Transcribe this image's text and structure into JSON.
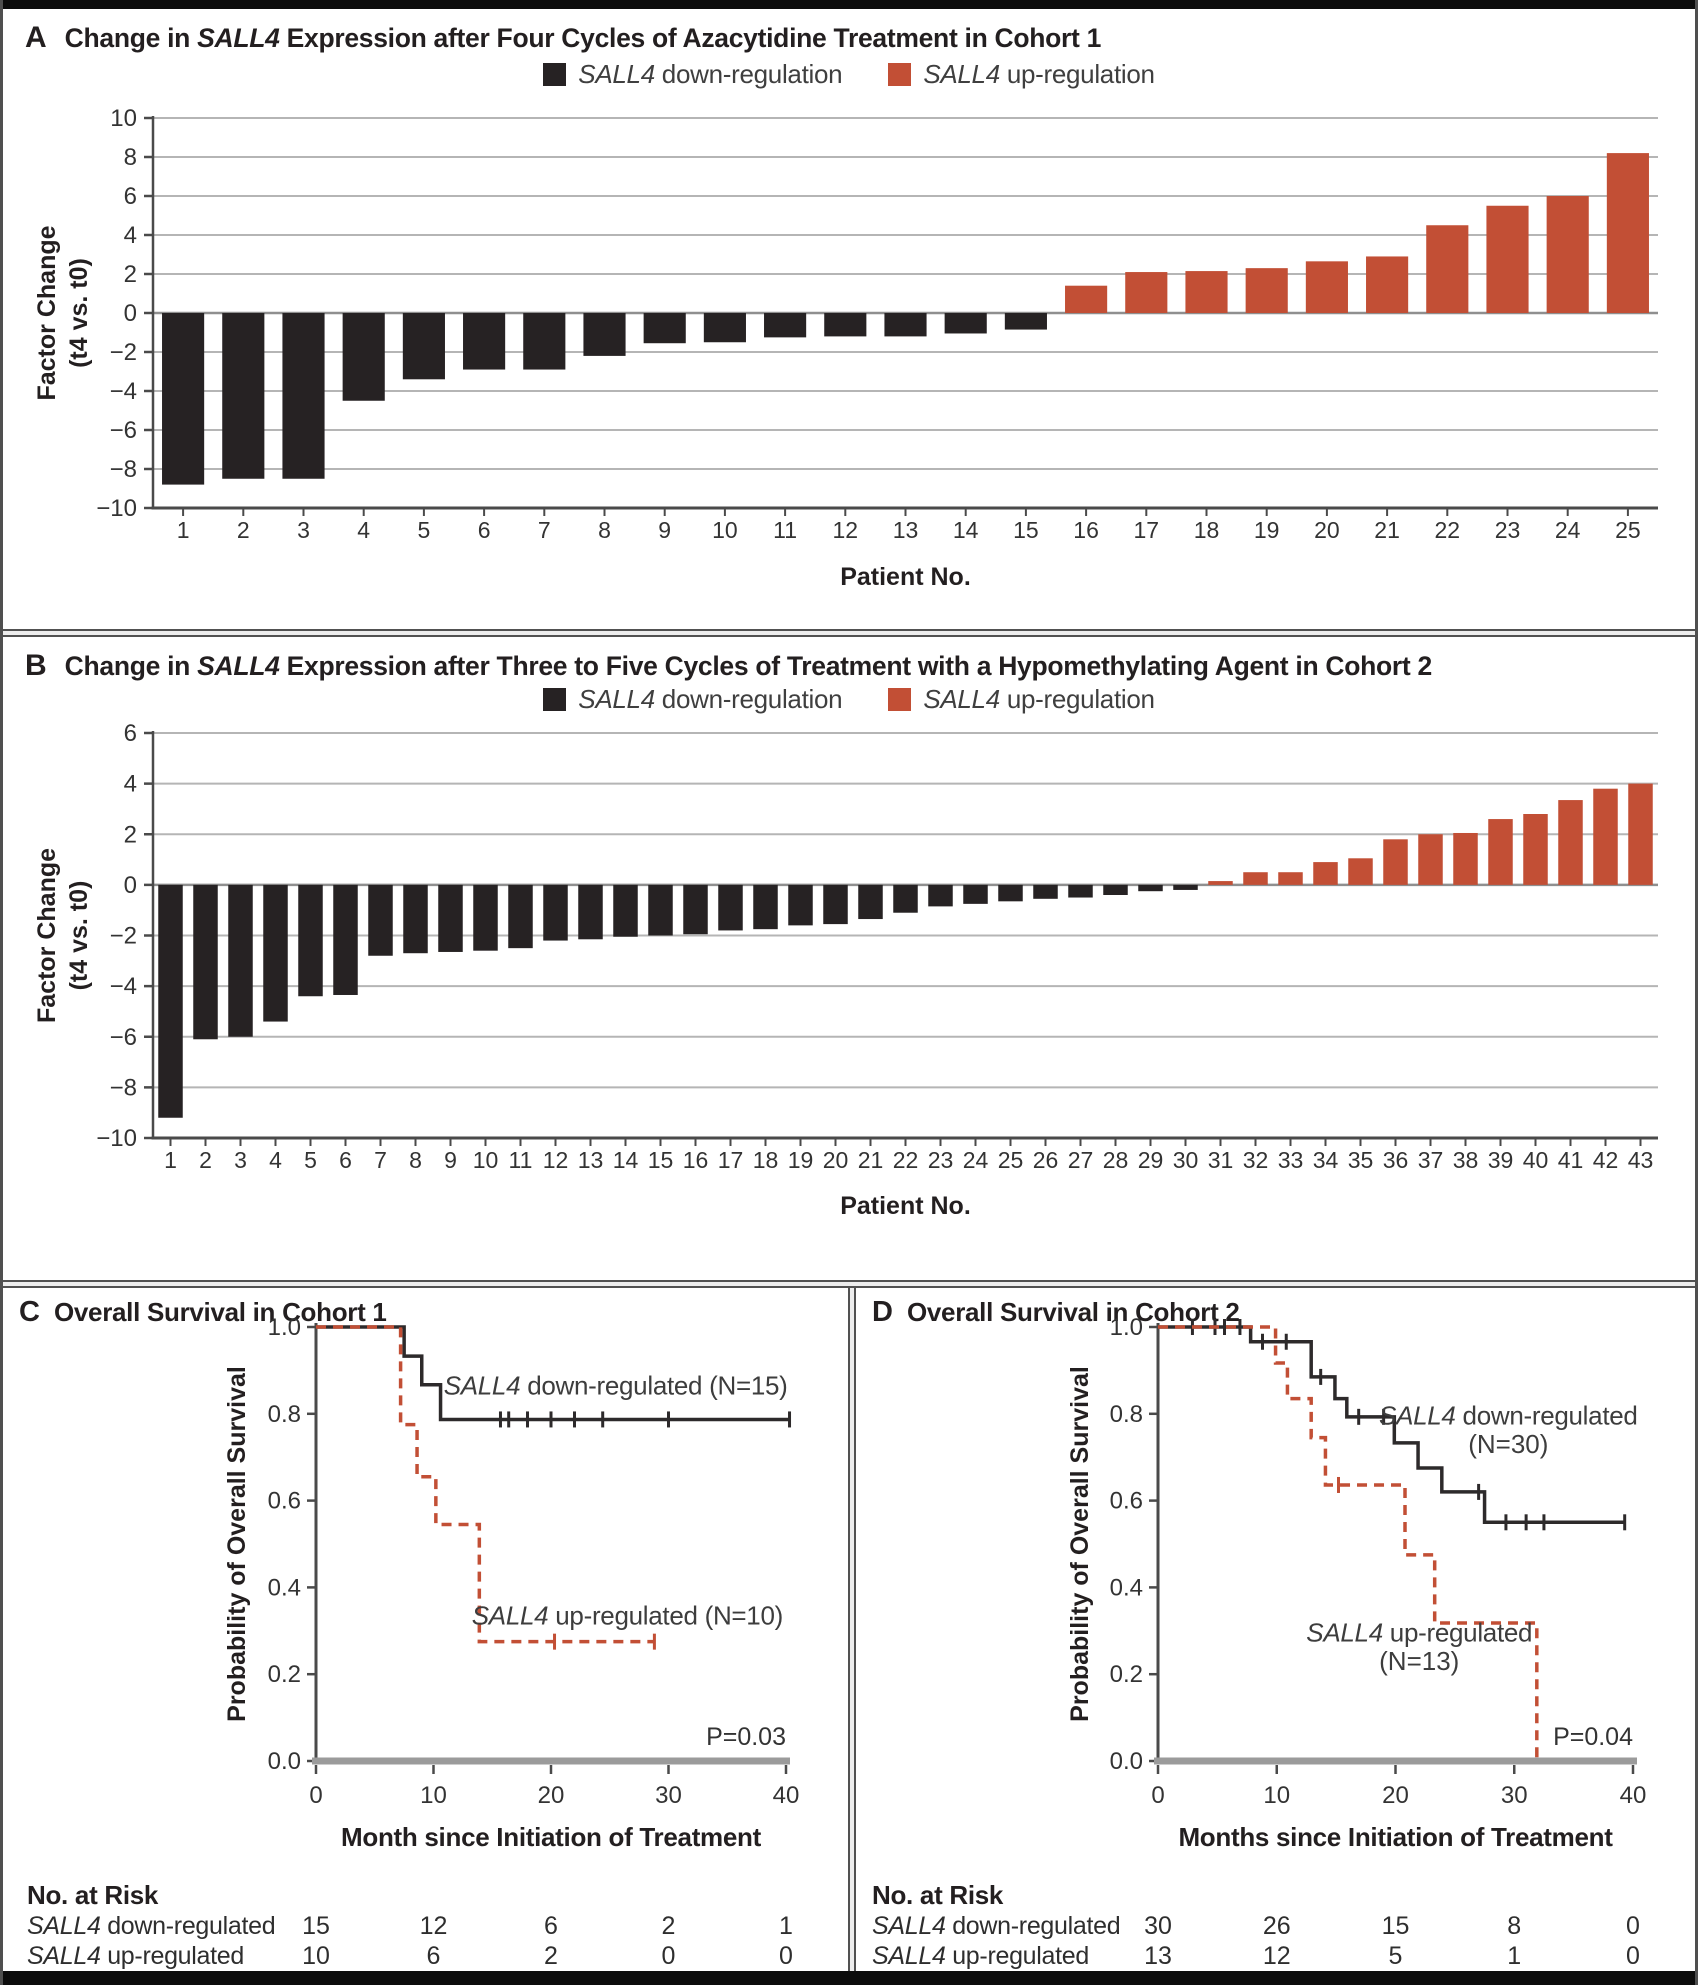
{
  "figure": {
    "colors": {
      "down": "#262223",
      "up": "#c24f35"
    },
    "legend": {
      "gene": "SALL4",
      "down_rest": " down-regulation",
      "up_rest": " up-regulation"
    },
    "panelA": {
      "letter": "A",
      "title_pre": "Change in ",
      "title_gene": "SALL4",
      "title_post": " Expression after Four Cycles of Azacytidine Treatment in Cohort 1"
    },
    "panelB": {
      "letter": "B",
      "title_pre": "Change in ",
      "title_gene": "SALL4",
      "title_post": " Expression after Three to Five Cycles of Treatment with a Hypomethylating Agent in Cohort 2"
    },
    "panelC": {
      "letter": "C",
      "title": "Overall Survival in Cohort 1"
    },
    "panelD": {
      "letter": "D",
      "title": "Overall Survival in Cohort 2"
    }
  },
  "chart_data": [
    {
      "id": "A",
      "type": "bar",
      "title": "Change in SALL4 Expression after Four Cycles of Azacytidine Treatment in Cohort 1",
      "xlabel": "Patient No.",
      "ylabel_line1": "Factor Change",
      "ylabel_line2": "(t4 vs. t0)",
      "ylim": [
        -10,
        10
      ],
      "yticks": [
        10,
        8,
        6,
        4,
        2,
        0,
        -2,
        -4,
        -6,
        -8,
        -10
      ],
      "legend": [
        "SALL4 down-regulation",
        "SALL4 up-regulation"
      ],
      "categories": [
        1,
        2,
        3,
        4,
        5,
        6,
        7,
        8,
        9,
        10,
        11,
        12,
        13,
        14,
        15,
        16,
        17,
        18,
        19,
        20,
        21,
        22,
        23,
        24,
        25
      ],
      "values": [
        -8.8,
        -8.5,
        -8.5,
        -4.5,
        -3.4,
        -2.9,
        -2.9,
        -2.2,
        -1.55,
        -1.5,
        -1.25,
        -1.2,
        -1.2,
        -1.05,
        -0.85,
        1.4,
        2.1,
        2.15,
        2.3,
        2.65,
        2.9,
        4.5,
        5.5,
        6.0,
        8.2
      ],
      "color_rule": "negative=down, positive=up"
    },
    {
      "id": "B",
      "type": "bar",
      "title": "Change in SALL4 Expression after Three to Five Cycles of Treatment with a Hypomethylating Agent in Cohort 2",
      "xlabel": "Patient No.",
      "ylabel_line1": "Factor Change",
      "ylabel_line2": "(t4 vs. t0)",
      "ylim": [
        -10,
        6
      ],
      "yticks": [
        6,
        4,
        2,
        0,
        -2,
        -4,
        -6,
        -8,
        -10
      ],
      "legend": [
        "SALL4 down-regulation",
        "SALL4 up-regulation"
      ],
      "categories": [
        1,
        2,
        3,
        4,
        5,
        6,
        7,
        8,
        9,
        10,
        11,
        12,
        13,
        14,
        15,
        16,
        17,
        18,
        19,
        20,
        21,
        22,
        23,
        24,
        25,
        26,
        27,
        28,
        29,
        30,
        31,
        32,
        33,
        34,
        35,
        36,
        37,
        38,
        39,
        40,
        41,
        42,
        43
      ],
      "values": [
        -9.2,
        -6.1,
        -6.0,
        -5.4,
        -4.4,
        -4.35,
        -2.8,
        -2.7,
        -2.65,
        -2.6,
        -2.5,
        -2.2,
        -2.15,
        -2.05,
        -2.0,
        -1.95,
        -1.8,
        -1.75,
        -1.6,
        -1.55,
        -1.35,
        -1.1,
        -0.85,
        -0.75,
        -0.65,
        -0.55,
        -0.5,
        -0.4,
        -0.25,
        -0.2,
        0.15,
        0.5,
        0.5,
        0.9,
        1.05,
        1.8,
        2.0,
        2.05,
        2.6,
        2.8,
        3.35,
        3.8,
        4.0
      ],
      "color_rule": "negative=down, positive=up"
    },
    {
      "id": "C",
      "type": "line",
      "subtype": "kaplan-meier",
      "title": "Overall Survival in Cohort 1",
      "xlabel": "Month since Initiation of Treatment",
      "ylabel": "Probability of Overall Survival",
      "xlim": [
        0,
        40
      ],
      "xticks": [
        0,
        10,
        20,
        30,
        40
      ],
      "yticks": [
        0.0,
        0.2,
        0.4,
        0.6,
        0.8,
        1.0
      ],
      "pvalue": "P=0.03",
      "series": [
        {
          "name": "SALL4 down-regulated (N=15)",
          "color_key": "down",
          "dash": false,
          "steps": [
            [
              0,
              1.0
            ],
            [
              7.5,
              0.933
            ],
            [
              9.0,
              0.867
            ],
            [
              10.6,
              0.787
            ]
          ],
          "end": 40.3,
          "censors": [
            [
              15.7,
              0.787
            ],
            [
              16.4,
              0.787
            ],
            [
              18.0,
              0.787
            ],
            [
              20.0,
              0.787
            ],
            [
              22.0,
              0.787
            ],
            [
              24.4,
              0.787
            ],
            [
              30.0,
              0.787
            ],
            [
              40.3,
              0.787
            ]
          ],
          "label_gene": "SALL4",
          "label_rest": " down-regulated (N=15)",
          "label_x": 25.5,
          "label_y": 0.845,
          "label2": "",
          "label2_y": 0
        },
        {
          "name": "SALL4 up-regulated (N=10)",
          "color_key": "up",
          "dash": true,
          "steps": [
            [
              0,
              1.0
            ],
            [
              7.2,
              0.775
            ],
            [
              8.6,
              0.655
            ],
            [
              10.2,
              0.545
            ],
            [
              13.9,
              0.275
            ]
          ],
          "end": 28.8,
          "censors": [
            [
              20.3,
              0.275
            ],
            [
              28.8,
              0.275
            ]
          ],
          "label_gene": "SALL4",
          "label_rest": " up-regulated (N=10)",
          "label_x": 26.5,
          "label_y": 0.315,
          "label2": "",
          "label2_y": 0
        }
      ],
      "risk": {
        "header": "No. at Risk",
        "rows": [
          {
            "gene": "SALL4",
            "rest": " down-regulated",
            "counts": [
              "15",
              "12",
              "6",
              "2",
              "1"
            ]
          },
          {
            "gene": "SALL4",
            "rest": " up-regulated",
            "counts": [
              "10",
              "6",
              "2",
              "0",
              "0"
            ]
          }
        ]
      }
    },
    {
      "id": "D",
      "type": "line",
      "subtype": "kaplan-meier",
      "title": "Overall Survival in Cohort 2",
      "xlabel": "Months since Initiation of Treatment",
      "ylabel": "Probability of Overall Survival",
      "xlim": [
        0,
        40
      ],
      "xticks": [
        0,
        10,
        20,
        30,
        40
      ],
      "yticks": [
        0.0,
        0.2,
        0.4,
        0.6,
        0.8,
        1.0
      ],
      "pvalue": "P=0.04",
      "series": [
        {
          "name": "SALL4 down-regulated (N=30)",
          "color_key": "down",
          "dash": false,
          "steps": [
            [
              0,
              1.0
            ],
            [
              7.8,
              0.966
            ],
            [
              12.9,
              0.885
            ],
            [
              14.9,
              0.835
            ],
            [
              15.9,
              0.793
            ],
            [
              19.9,
              0.733
            ],
            [
              21.9,
              0.675
            ],
            [
              23.9,
              0.62
            ],
            [
              27.5,
              0.55
            ]
          ],
          "end": 39.3,
          "censors": [
            [
              2.9,
              1.0
            ],
            [
              4.8,
              1.0
            ],
            [
              5.6,
              1.0
            ],
            [
              6.9,
              1.0
            ],
            [
              8.8,
              0.966
            ],
            [
              10.8,
              0.966
            ],
            [
              13.7,
              0.885
            ],
            [
              16.9,
              0.793
            ],
            [
              19.0,
              0.793
            ],
            [
              27.0,
              0.62
            ],
            [
              29.3,
              0.55
            ],
            [
              31.0,
              0.55
            ],
            [
              32.5,
              0.55
            ],
            [
              39.3,
              0.55
            ]
          ],
          "label_gene": "SALL4",
          "label_rest": " down-regulated",
          "label_x": 29.5,
          "label_y": 0.775,
          "label2": "(N=30)",
          "label2_y": 0.71
        },
        {
          "name": "SALL4 up-regulated (N=13)",
          "color_key": "up",
          "dash": true,
          "steps": [
            [
              0,
              1.0
            ],
            [
              9.9,
              0.917
            ],
            [
              10.9,
              0.835
            ],
            [
              12.9,
              0.745
            ],
            [
              14.1,
              0.636
            ],
            [
              20.8,
              0.475
            ],
            [
              23.3,
              0.318
            ],
            [
              31.9,
              0.0
            ]
          ],
          "end": 31.9,
          "censors": [
            [
              15.2,
              0.636
            ]
          ],
          "label_gene": "SALL4",
          "label_rest": " up-regulated",
          "label_x": 22,
          "label_y": 0.275,
          "label2": "(N=13)",
          "label2_y": 0.21
        }
      ],
      "risk": {
        "header": "No. at Risk",
        "rows": [
          {
            "gene": "SALL4",
            "rest": " down-regulated",
            "counts": [
              "30",
              "26",
              "15",
              "8",
              "0"
            ]
          },
          {
            "gene": "SALL4",
            "rest": " up-regulated",
            "counts": [
              "13",
              "12",
              "5",
              "1",
              "0"
            ]
          }
        ]
      }
    }
  ]
}
